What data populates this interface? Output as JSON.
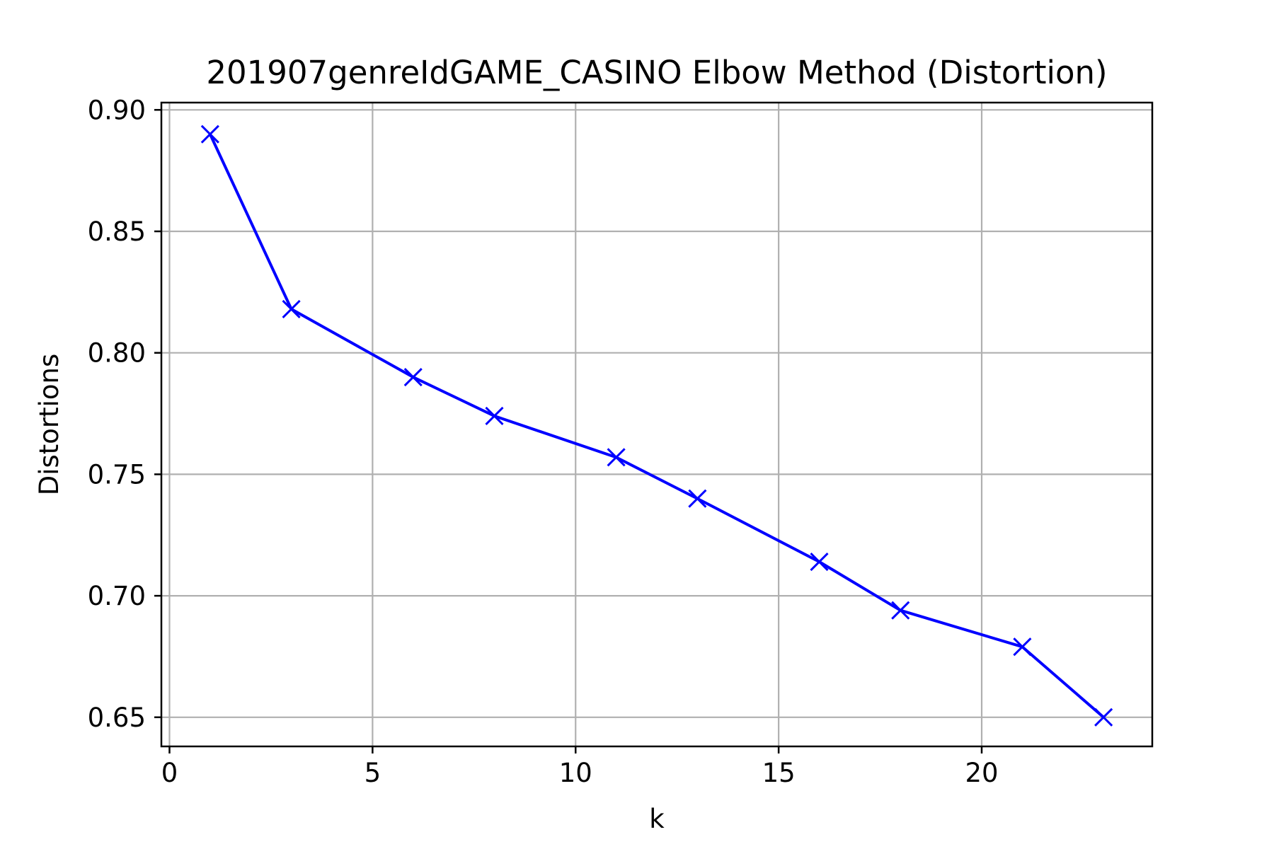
{
  "chart_data": {
    "type": "line",
    "title": "201907genreIdGAME_CASINO Elbow Method (Distortion)",
    "xlabel": "k",
    "ylabel": "Distortions",
    "xlim": [
      -0.2,
      24.2
    ],
    "ylim": [
      0.638,
      0.903
    ],
    "xticks": [
      0,
      5,
      10,
      15,
      20
    ],
    "yticks": [
      0.65,
      0.7,
      0.75,
      0.8,
      0.85,
      0.9
    ],
    "ytick_labels": [
      "0.65",
      "0.70",
      "0.75",
      "0.80",
      "0.85",
      "0.90"
    ],
    "grid": true,
    "marker": "x",
    "color": "#0000ff",
    "series": [
      {
        "x": [
          1,
          3,
          6,
          8,
          11,
          13,
          16,
          18,
          21,
          23
        ],
        "values": [
          0.89,
          0.818,
          0.79,
          0.774,
          0.757,
          0.74,
          0.714,
          0.694,
          0.679,
          0.65
        ]
      }
    ]
  }
}
